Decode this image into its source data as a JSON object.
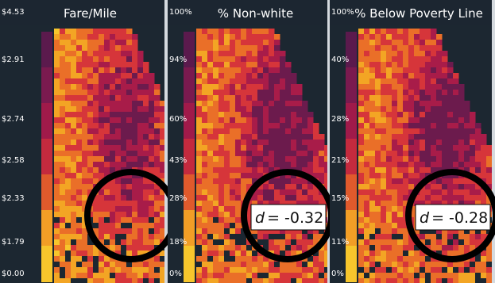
{
  "panels": [
    {
      "title": "Fare/Mile",
      "legend": [
        "$4.53",
        "$2.91",
        "$2.74",
        "$2.58",
        "$2.33",
        "$1.79",
        "$0.00"
      ]
    },
    {
      "title": "% Non-white",
      "legend": [
        "100%",
        "94%",
        "60%",
        "43%",
        "28%",
        "18%",
        "0%"
      ],
      "annotation": {
        "symbol": "d",
        "text": "= -0.32"
      }
    },
    {
      "title": "% Below Poverty Line",
      "legend": [
        "100%",
        "40%",
        "28%",
        "21%",
        "15%",
        "11%",
        "0%"
      ],
      "annotation": {
        "symbol": "d",
        "text": "= -0.28"
      }
    }
  ]
}
